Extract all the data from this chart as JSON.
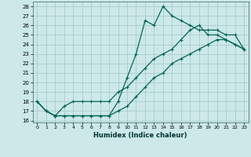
{
  "xlabel": "Humidex (Indice chaleur)",
  "bg_color": "#cce8e8",
  "grid_color": "#aacccc",
  "line_color": "#006655",
  "xlim": [
    -0.5,
    23.5
  ],
  "ylim": [
    15.8,
    28.5
  ],
  "xticks": [
    0,
    1,
    2,
    3,
    4,
    5,
    6,
    7,
    8,
    9,
    10,
    11,
    12,
    13,
    14,
    15,
    16,
    17,
    18,
    19,
    20,
    21,
    22,
    23
  ],
  "yticks": [
    16,
    17,
    18,
    19,
    20,
    21,
    22,
    23,
    24,
    25,
    26,
    27,
    28
  ],
  "line1_x": [
    0,
    1,
    2,
    3,
    4,
    5,
    6,
    7,
    8,
    9,
    10,
    11,
    12,
    13,
    14,
    15,
    16,
    17,
    18,
    19,
    20,
    21,
    22,
    23
  ],
  "line1_y": [
    18,
    17,
    16.5,
    16.5,
    16.5,
    16.5,
    16.5,
    16.5,
    16.5,
    17,
    17.5,
    18.5,
    19.5,
    20.5,
    21,
    22,
    22.5,
    23,
    23.5,
    24,
    24.5,
    24.5,
    24,
    23.5
  ],
  "line2_x": [
    0,
    1,
    2,
    3,
    4,
    5,
    6,
    7,
    8,
    9,
    10,
    11,
    12,
    13,
    14,
    15,
    16,
    17,
    18,
    19,
    20,
    21,
    22,
    23
  ],
  "line2_y": [
    18,
    17,
    16.5,
    16.5,
    16.5,
    16.5,
    16.5,
    16.5,
    16.5,
    18,
    20.5,
    23,
    26.5,
    26,
    28,
    27,
    26.5,
    26,
    25.5,
    25.5,
    25.5,
    25,
    25,
    23.5
  ],
  "line3_x": [
    0,
    1,
    2,
    3,
    4,
    5,
    6,
    7,
    8,
    9,
    10,
    11,
    12,
    13,
    14,
    15,
    16,
    17,
    18,
    19,
    20,
    21,
    22,
    23
  ],
  "line3_y": [
    18,
    17,
    16.5,
    17.5,
    18,
    18,
    18,
    18,
    18,
    19,
    19.5,
    20.5,
    21.5,
    22.5,
    23,
    23.5,
    24.5,
    25.5,
    26,
    25,
    25,
    24.5,
    24,
    23.5
  ]
}
